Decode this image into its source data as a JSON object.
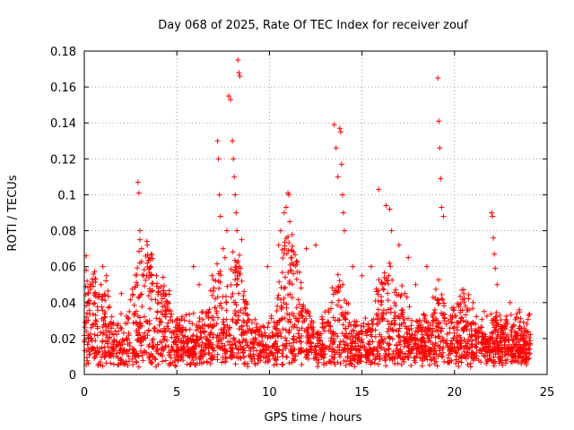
{
  "chart_data": {
    "type": "scatter",
    "title": "Day 068 of 2025, Rate Of TEC Index for receiver zouf",
    "xlabel": "GPS time / hours",
    "ylabel": "ROTI / TECUs",
    "xlim": [
      0,
      25
    ],
    "ylim": [
      0,
      0.18
    ],
    "x_ticks": [
      0,
      5,
      10,
      15,
      20,
      25
    ],
    "x_tick_labels": [
      "0",
      "5",
      "10",
      "15",
      "20",
      "25"
    ],
    "y_ticks": [
      0,
      0.02,
      0.04,
      0.06,
      0.08,
      0.1,
      0.12,
      0.14,
      0.16,
      0.18
    ],
    "y_tick_labels": [
      "0",
      "0.02",
      "0.04",
      "0.06",
      "0.08",
      "0.1",
      "0.12",
      "0.14",
      "0.16",
      "0.18"
    ],
    "grid": true,
    "marker": "plus",
    "marker_color": "#ff0000",
    "series": [
      {
        "name": "ROTI",
        "x": [
          0.1,
          0.1,
          0.15,
          0.2,
          0.9,
          1.0,
          1.2,
          2.0,
          2.9,
          2.95,
          3.0,
          3.0,
          3.1,
          3.4,
          3.5,
          3.6,
          3.9,
          4.3,
          4.5,
          5.9,
          6.2,
          6.9,
          7.2,
          7.25,
          7.3,
          7.35,
          7.5,
          7.6,
          7.7,
          7.8,
          7.9,
          8.0,
          8.05,
          8.1,
          8.15,
          8.2,
          8.25,
          8.3,
          8.35,
          8.4,
          8.5,
          9.9,
          10.5,
          10.6,
          10.8,
          10.9,
          11.0,
          11.05,
          11.1,
          11.2,
          11.5,
          12.0,
          12.5,
          13.5,
          13.6,
          13.7,
          13.8,
          13.85,
          13.9,
          13.95,
          14.0,
          14.05,
          14.5,
          15.0,
          15.5,
          15.9,
          16.3,
          16.5,
          16.6,
          17.0,
          17.5,
          17.9,
          18.5,
          19.1,
          19.15,
          19.2,
          19.25,
          19.3,
          19.4,
          20.4,
          20.5,
          21.0,
          21.6,
          22.0,
          22.05,
          22.1,
          22.15,
          22.2,
          22.3,
          23.0,
          23.5,
          24.0
        ],
        "y": [
          0.066,
          0.058,
          0.052,
          0.045,
          0.05,
          0.06,
          0.055,
          0.045,
          0.107,
          0.101,
          0.08,
          0.075,
          0.07,
          0.072,
          0.065,
          0.06,
          0.055,
          0.045,
          0.04,
          0.06,
          0.05,
          0.055,
          0.13,
          0.12,
          0.1,
          0.088,
          0.07,
          0.065,
          0.08,
          0.155,
          0.153,
          0.13,
          0.12,
          0.11,
          0.1,
          0.09,
          0.08,
          0.175,
          0.168,
          0.166,
          0.075,
          0.06,
          0.072,
          0.08,
          0.09,
          0.093,
          0.101,
          0.1,
          0.085,
          0.065,
          0.057,
          0.07,
          0.072,
          0.139,
          0.126,
          0.11,
          0.137,
          0.135,
          0.117,
          0.1,
          0.09,
          0.08,
          0.06,
          0.055,
          0.06,
          0.103,
          0.094,
          0.092,
          0.08,
          0.072,
          0.065,
          0.05,
          0.06,
          0.165,
          0.141,
          0.126,
          0.109,
          0.093,
          0.088,
          0.047,
          0.045,
          0.04,
          0.035,
          0.09,
          0.088,
          0.076,
          0.067,
          0.059,
          0.05,
          0.04,
          0.036,
          0.033
        ]
      }
    ]
  }
}
